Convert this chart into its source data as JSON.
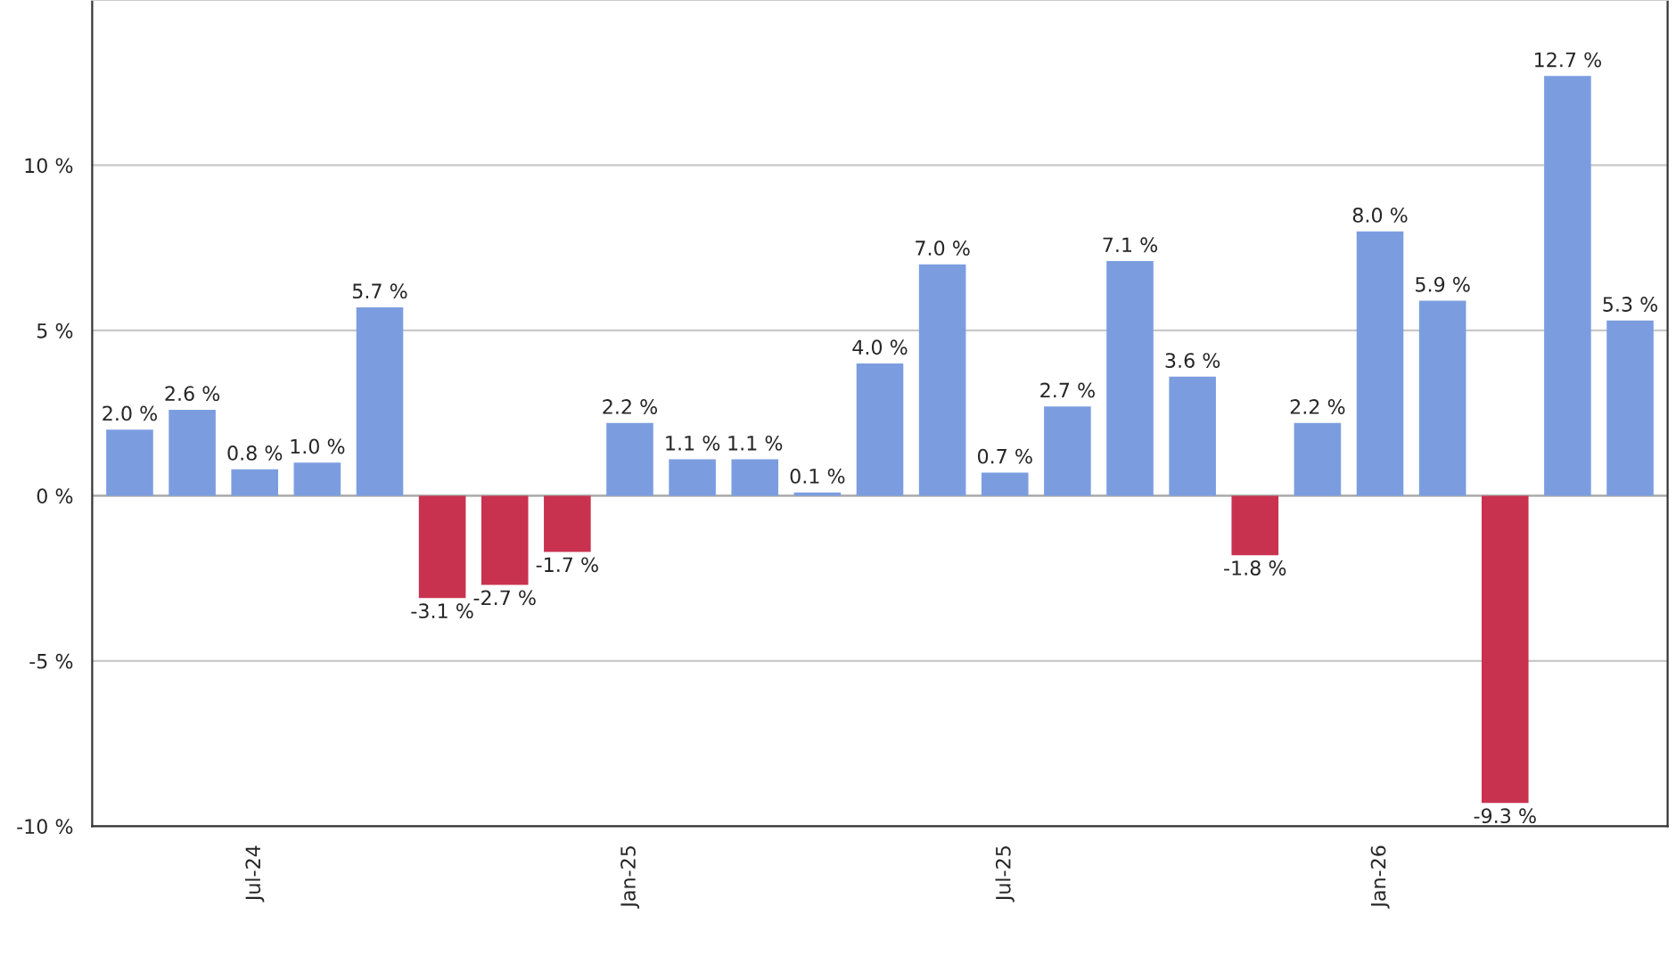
{
  "chart_data": {
    "type": "bar",
    "categories": [
      null,
      null,
      "Jul-24",
      null,
      null,
      null,
      null,
      null,
      "Jan-25",
      null,
      null,
      null,
      null,
      null,
      "Jul-25",
      null,
      null,
      null,
      null,
      null,
      "Jan-26",
      null,
      null,
      null,
      null
    ],
    "values": [
      2.0,
      2.6,
      0.8,
      1.0,
      5.7,
      -3.1,
      -2.7,
      -1.7,
      2.2,
      1.1,
      1.1,
      0.1,
      4.0,
      7.0,
      0.7,
      2.7,
      7.1,
      3.6,
      -1.8,
      2.2,
      8.0,
      5.9,
      -9.3,
      12.7,
      5.3
    ],
    "value_labels": [
      "2.0 %",
      "2.6 %",
      "0.8 %",
      "1.0 %",
      "5.7 %",
      "-3.1 %",
      "-2.7 %",
      "-1.7 %",
      "2.2 %",
      "1.1 %",
      "1.1 %",
      "0.1 %",
      "4.0 %",
      "7.0 %",
      "0.7 %",
      "2.7 %",
      "7.1 %",
      "3.6 %",
      "-1.8 %",
      "2.2 %",
      "8.0 %",
      "5.9 %",
      "-9.3 %",
      "12.7 %",
      "5.3 %"
    ],
    "colors": [
      "#7b9de0",
      "#7b9de0",
      "#7b9de0",
      "#7b9de0",
      "#7b9de0",
      "#c8324f",
      "#c8324f",
      "#c8324f",
      "#7b9de0",
      "#7b9de0",
      "#7b9de0",
      "#7b9de0",
      "#7b9de0",
      "#7b9de0",
      "#7b9de0",
      "#7b9de0",
      "#7b9de0",
      "#7b9de0",
      "#c8324f",
      "#7b9de0",
      "#7b9de0",
      "#7b9de0",
      "#c8324f",
      "#7b9de0",
      "#7b9de0"
    ],
    "ylim": [
      -10,
      15
    ],
    "yticks": [
      {
        "value": -10,
        "label": "-10 %"
      },
      {
        "value": -5,
        "label": "-5 %"
      },
      {
        "value": 0,
        "label": "0 %"
      },
      {
        "value": 5,
        "label": "5 %"
      },
      {
        "value": 10,
        "label": "10 %"
      }
    ],
    "grid": "y"
  }
}
